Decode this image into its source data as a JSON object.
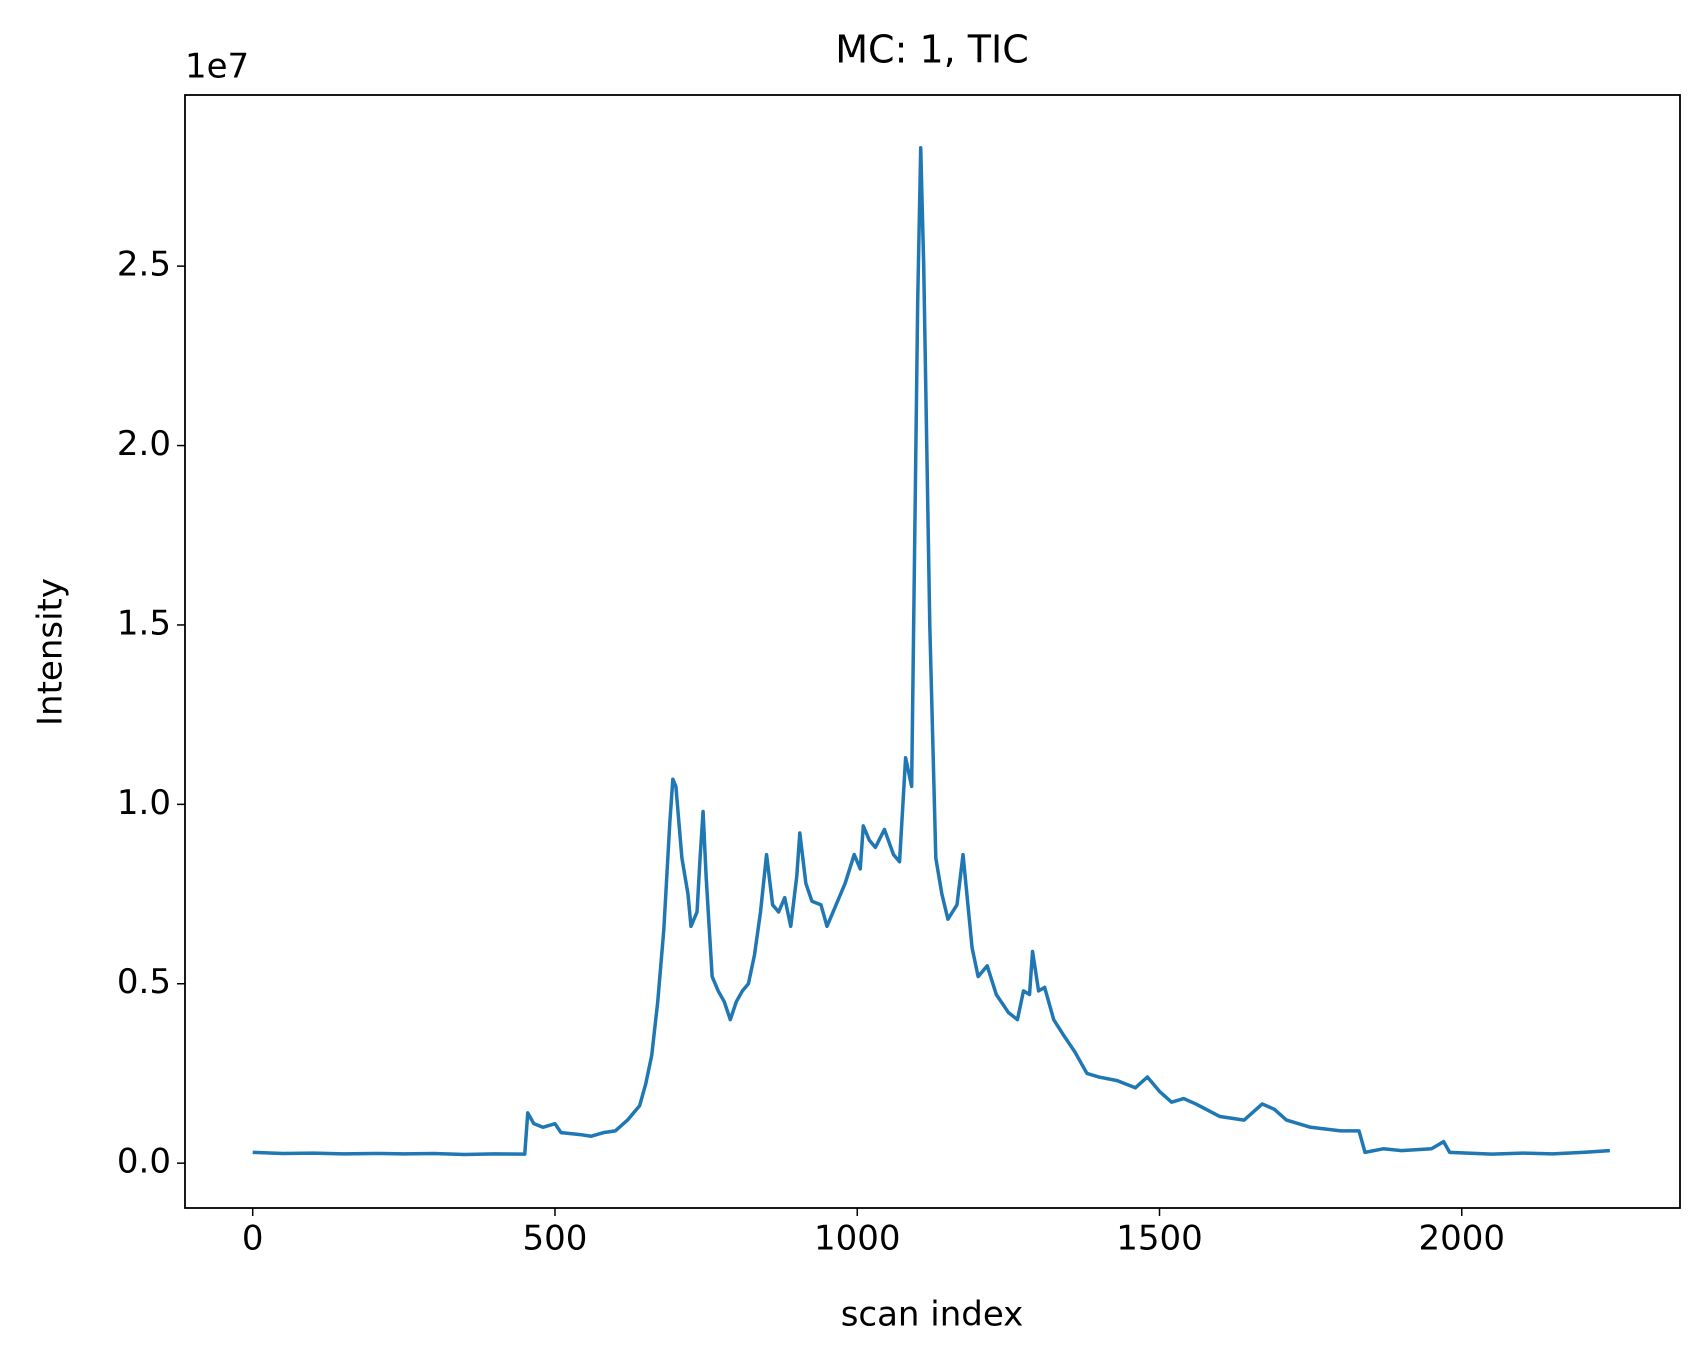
{
  "chart_data": {
    "type": "line",
    "title": "MC: 1, TIC",
    "x_label": "scan index",
    "y_label": "Intensity",
    "y_offset_label": "1e7",
    "x": [
      0,
      50,
      100,
      150,
      200,
      250,
      300,
      350,
      400,
      450,
      455,
      465,
      480,
      500,
      510,
      540,
      560,
      580,
      600,
      620,
      640,
      650,
      660,
      670,
      680,
      690,
      695,
      700,
      710,
      720,
      725,
      735,
      740,
      745,
      750,
      760,
      770,
      780,
      790,
      800,
      810,
      820,
      830,
      840,
      850,
      860,
      870,
      880,
      890,
      900,
      905,
      915,
      925,
      940,
      950,
      965,
      980,
      995,
      1005,
      1010,
      1020,
      1030,
      1045,
      1060,
      1070,
      1080,
      1090,
      1100,
      1105,
      1110,
      1120,
      1130,
      1140,
      1150,
      1165,
      1175,
      1190,
      1200,
      1215,
      1230,
      1250,
      1265,
      1275,
      1285,
      1290,
      1300,
      1310,
      1325,
      1340,
      1360,
      1380,
      1400,
      1430,
      1460,
      1480,
      1500,
      1520,
      1540,
      1560,
      1600,
      1640,
      1670,
      1690,
      1710,
      1750,
      1800,
      1830,
      1840,
      1870,
      1900,
      1950,
      1970,
      1980,
      2050,
      2100,
      2150,
      2200,
      2245
    ],
    "series": [
      {
        "name": "TIC",
        "color": "#1f77b4",
        "values": [
          0.03,
          0.027,
          0.028,
          0.026,
          0.027,
          0.026,
          0.027,
          0.024,
          0.026,
          0.025,
          0.14,
          0.11,
          0.1,
          0.11,
          0.085,
          0.08,
          0.075,
          0.085,
          0.09,
          0.12,
          0.16,
          0.22,
          0.3,
          0.45,
          0.65,
          0.95,
          1.07,
          1.05,
          0.85,
          0.75,
          0.66,
          0.7,
          0.85,
          0.98,
          0.8,
          0.52,
          0.48,
          0.45,
          0.4,
          0.45,
          0.48,
          0.5,
          0.58,
          0.7,
          0.86,
          0.72,
          0.7,
          0.74,
          0.66,
          0.8,
          0.92,
          0.78,
          0.73,
          0.72,
          0.66,
          0.72,
          0.78,
          0.86,
          0.82,
          0.94,
          0.9,
          0.88,
          0.93,
          0.86,
          0.84,
          1.13,
          1.05,
          2.4,
          2.83,
          2.5,
          1.5,
          0.85,
          0.75,
          0.68,
          0.72,
          0.86,
          0.6,
          0.52,
          0.55,
          0.47,
          0.42,
          0.4,
          0.48,
          0.47,
          0.59,
          0.48,
          0.49,
          0.4,
          0.36,
          0.31,
          0.25,
          0.24,
          0.23,
          0.21,
          0.24,
          0.2,
          0.17,
          0.18,
          0.165,
          0.13,
          0.12,
          0.165,
          0.15,
          0.12,
          0.1,
          0.09,
          0.09,
          0.03,
          0.04,
          0.035,
          0.04,
          0.06,
          0.03,
          0.025,
          0.028,
          0.026,
          0.03,
          0.035
        ]
      }
    ],
    "xlim": [
      -112,
      2361
    ],
    "ylim": [
      -0.125,
      2.977
    ],
    "xticks": [
      0,
      500,
      1000,
      1500,
      2000
    ],
    "yticks": [
      {
        "value": 0,
        "label": "0.0"
      },
      0.5,
      {
        "value": 1,
        "label": "1.0"
      },
      1.5,
      {
        "value": 2,
        "label": "2.0"
      },
      2.5
    ],
    "grid": false
  }
}
